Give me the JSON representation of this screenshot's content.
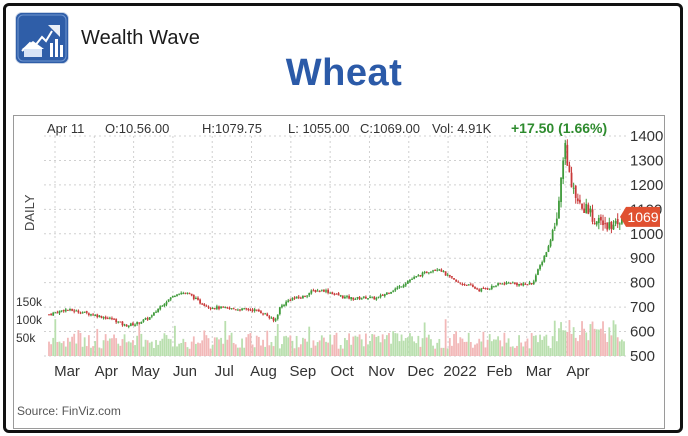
{
  "header": {
    "brand_name": "Wealth Wave",
    "logo_icon": "wealth-wave-logo-icon",
    "title": "Wheat"
  },
  "quote": {
    "date": "Apr 11",
    "open": "O:10.56.00",
    "high": "H:1079.75",
    "low": "L: 1055.00",
    "close": "C:1069.00",
    "volume": "Vol: 4.91K",
    "change": "+17.50 (1.66%)",
    "last_price_tag": "1069",
    "timeframe": "DAILY"
  },
  "source": "Source: FinViz.com",
  "colors": {
    "title": "#2b5aa8",
    "up": "#3f9a3a",
    "down": "#c93a3a",
    "change_text": "#2e8b2e",
    "price_tag": "#e05030",
    "volume_up": "#b9dfae",
    "volume_down": "#f2b8b8",
    "grid": "#d0d0d0"
  },
  "chart_data": {
    "type": "candlestick",
    "title": "Wheat",
    "ylabel": "DAILY",
    "ylim": [
      500,
      1400
    ],
    "y_ticks": [
      "1400",
      "1300",
      "1200",
      "1100",
      "1000",
      "900",
      "800",
      "700",
      "600",
      "500"
    ],
    "y_tick_values": [
      1400,
      1300,
      1200,
      1100,
      1000,
      900,
      800,
      700,
      600,
      500
    ],
    "x_ticks": [
      "Mar",
      "Apr",
      "May",
      "Jun",
      "Jul",
      "Aug",
      "Sep",
      "Oct",
      "Nov",
      "Dec",
      "2022",
      "Feb",
      "Mar",
      "Apr"
    ],
    "volume_ticks": [
      "150k",
      "100k",
      "50k"
    ],
    "volume_tick_values": [
      150,
      100,
      50
    ],
    "grid": true,
    "last_price": 1069,
    "price_path": [
      [
        0,
        670
      ],
      [
        3,
        690
      ],
      [
        6,
        680
      ],
      [
        9,
        665
      ],
      [
        12,
        650
      ],
      [
        14,
        625
      ],
      [
        16,
        630
      ],
      [
        19,
        660
      ],
      [
        21,
        710
      ],
      [
        24,
        760
      ],
      [
        26,
        755
      ],
      [
        28,
        720
      ],
      [
        30,
        700
      ],
      [
        33,
        695
      ],
      [
        36,
        690
      ],
      [
        38,
        690
      ],
      [
        40,
        675
      ],
      [
        42,
        640
      ],
      [
        43,
        700
      ],
      [
        45,
        735
      ],
      [
        47,
        740
      ],
      [
        49,
        765
      ],
      [
        51,
        770
      ],
      [
        53,
        755
      ],
      [
        55,
        740
      ],
      [
        57,
        735
      ],
      [
        59,
        740
      ],
      [
        61,
        735
      ],
      [
        63,
        760
      ],
      [
        65,
        780
      ],
      [
        67,
        810
      ],
      [
        69,
        830
      ],
      [
        71,
        850
      ],
      [
        72.5,
        860
      ],
      [
        74,
        830
      ],
      [
        76,
        800
      ],
      [
        78,
        790
      ],
      [
        80,
        770
      ],
      [
        82,
        780
      ],
      [
        84,
        795
      ],
      [
        86,
        800
      ],
      [
        88,
        790
      ],
      [
        90,
        800
      ],
      [
        91,
        850
      ],
      [
        93,
        950
      ],
      [
        94.5,
        1080
      ],
      [
        96,
        1370
      ],
      [
        97,
        1210
      ],
      [
        98.5,
        1110
      ],
      [
        100,
        1100
      ],
      [
        102,
        1050
      ],
      [
        104,
        1030
      ],
      [
        106,
        1060
      ],
      [
        107,
        1069
      ]
    ]
  }
}
